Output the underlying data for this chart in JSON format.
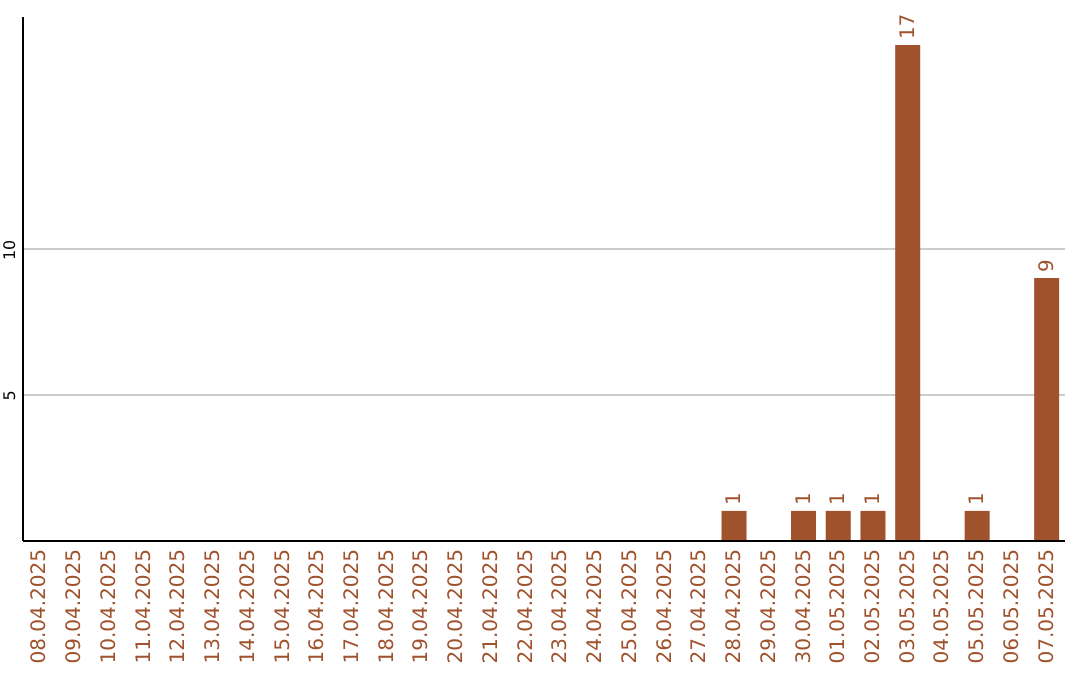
{
  "chart_data": {
    "type": "bar",
    "categories": [
      "08.04.2025",
      "09.04.2025",
      "10.04.2025",
      "11.04.2025",
      "12.04.2025",
      "13.04.2025",
      "14.04.2025",
      "15.04.2025",
      "16.04.2025",
      "17.04.2025",
      "18.04.2025",
      "19.04.2025",
      "20.04.2025",
      "21.04.2025",
      "22.04.2025",
      "23.04.2025",
      "24.04.2025",
      "25.04.2025",
      "26.04.2025",
      "27.04.2025",
      "28.04.2025",
      "29.04.2025",
      "30.04.2025",
      "01.05.2025",
      "02.05.2025",
      "03.05.2025",
      "04.05.2025",
      "05.05.2025",
      "06.05.2025",
      "07.05.2025"
    ],
    "values": [
      0,
      0,
      0,
      0,
      0,
      0,
      0,
      0,
      0,
      0,
      0,
      0,
      0,
      0,
      0,
      0,
      0,
      0,
      0,
      0,
      1,
      0,
      1,
      1,
      1,
      17,
      0,
      1,
      0,
      9
    ],
    "value_labels": [
      null,
      null,
      null,
      null,
      null,
      null,
      null,
      null,
      null,
      null,
      null,
      null,
      null,
      null,
      null,
      null,
      null,
      null,
      null,
      null,
      "1",
      null,
      "1",
      "1",
      "1",
      "17",
      null,
      "1",
      null,
      "9"
    ],
    "color": "#a0522d",
    "ylim": [
      0,
      18
    ],
    "yticks": [
      5,
      10
    ],
    "grid": true
  }
}
